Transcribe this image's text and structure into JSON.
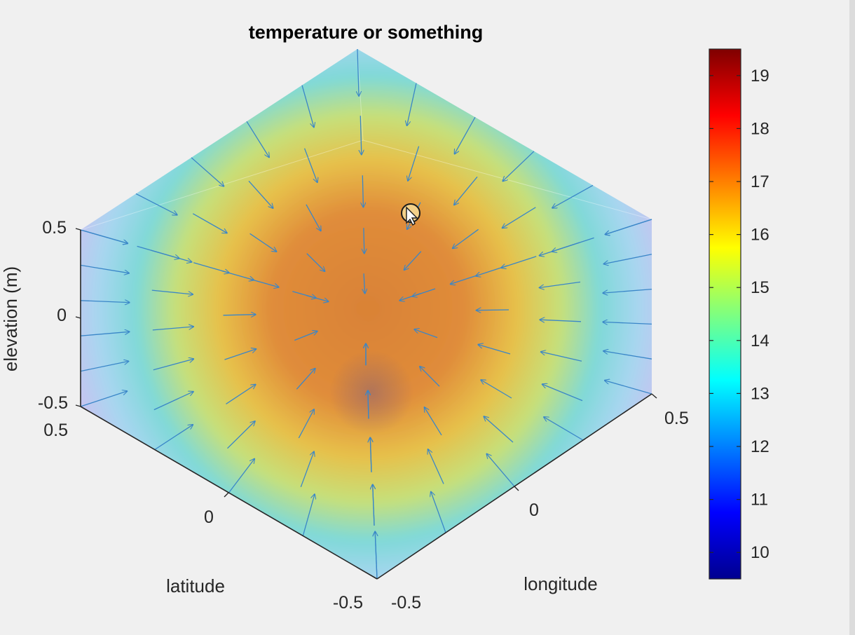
{
  "chart_data": {
    "type": "3d-volume-quiver",
    "title": "temperature or something",
    "xlabel": "latitude",
    "ylabel": "longitude",
    "zlabel": "elevation (m)",
    "xlim": [
      -0.5,
      0.5
    ],
    "ylim": [
      -0.5,
      0.5
    ],
    "zlim": [
      -0.5,
      0.5
    ],
    "x_ticks": [
      "0.5",
      "0",
      "-0.5"
    ],
    "y_ticks": [
      "-0.5",
      "0",
      "0.5"
    ],
    "z_ticks": [
      "0.5",
      "0",
      "-0.5"
    ],
    "colorbar": {
      "colormap": "jet",
      "clim": [
        9.5,
        19.5
      ],
      "ticks": [
        "10",
        "11",
        "12",
        "13",
        "14",
        "15",
        "16",
        "17",
        "18",
        "19"
      ]
    },
    "field": {
      "center_value": 17.2,
      "edge_value": 13.0,
      "vector_direction": "inward toward center"
    },
    "grid": false
  },
  "colors": {
    "background": "#f0f0f0",
    "axis_line": "#262626",
    "arrow": "#3a86c8",
    "title": "#000000"
  },
  "icons": {
    "cursor": "pointer-cursor-icon"
  }
}
